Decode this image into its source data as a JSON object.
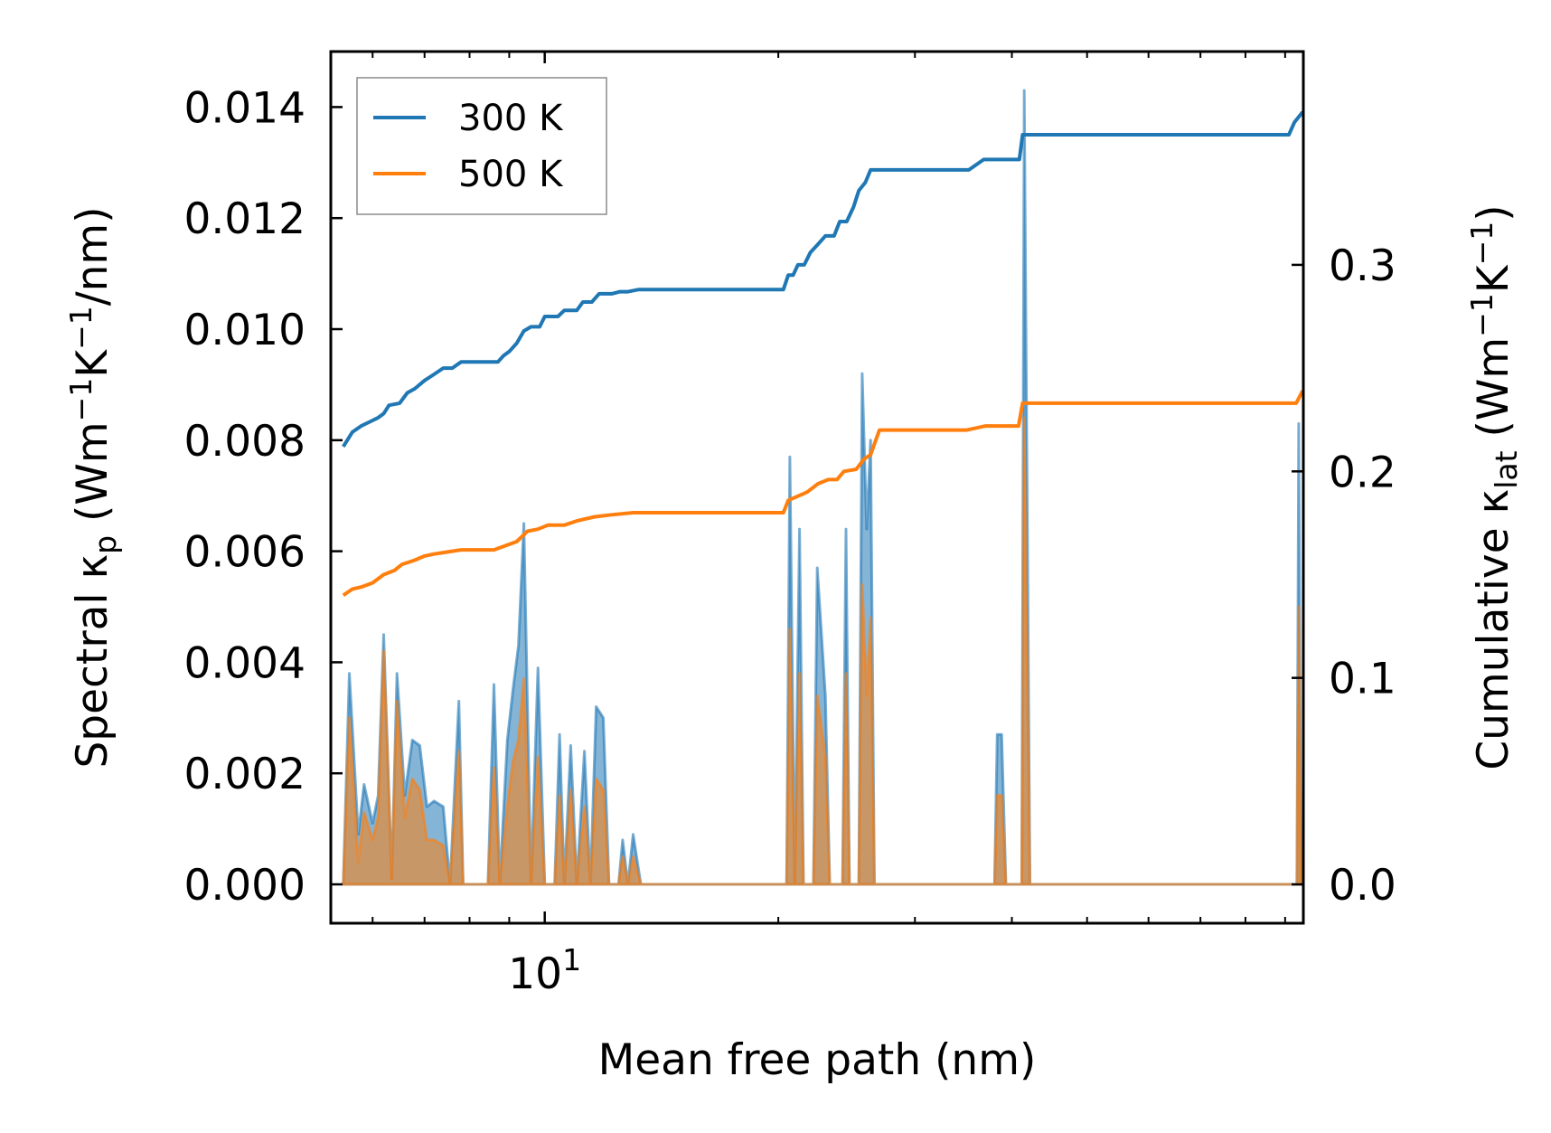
{
  "chart_data": {
    "type": "line",
    "xscale": "log",
    "xlim": [
      5.3,
      95
    ],
    "ylim_left": [
      -0.0007,
      0.015
    ],
    "ylim_right": [
      -0.0188,
      0.4033
    ],
    "xlabel": "Mean free path (nm)",
    "ylabel_left": {
      "main": "Spectral κ",
      "sub": "p",
      "unit_pre": " (Wm",
      "sup1": "−1",
      "unit_mid": "K",
      "sup2": "−1",
      "unit_post": "/nm)"
    },
    "ylabel_right": {
      "main": "Cumulative κ",
      "sub": "lat",
      "unit_pre": " (Wm",
      "sup1": "−1",
      "unit_mid": "K",
      "sup2": "−1",
      "unit_post": ")"
    },
    "x_major_ticks": [
      {
        "value": 10,
        "base": "10",
        "exp": "1"
      }
    ],
    "x_minor_ticks": [
      6,
      7,
      8,
      9,
      20,
      30,
      40,
      50,
      60,
      70,
      80,
      90
    ],
    "y_left_ticks": [
      {
        "value": 0.0,
        "label": "0.000"
      },
      {
        "value": 0.002,
        "label": "0.002"
      },
      {
        "value": 0.004,
        "label": "0.004"
      },
      {
        "value": 0.006,
        "label": "0.006"
      },
      {
        "value": 0.008,
        "label": "0.008"
      },
      {
        "value": 0.01,
        "label": "0.010"
      },
      {
        "value": 0.012,
        "label": "0.012"
      },
      {
        "value": 0.014,
        "label": "0.014"
      }
    ],
    "y_right_ticks": [
      {
        "value": 0.0,
        "label": "0.0"
      },
      {
        "value": 0.1,
        "label": "0.1"
      },
      {
        "value": 0.2,
        "label": "0.2"
      },
      {
        "value": 0.3,
        "label": "0.3"
      }
    ],
    "legend": {
      "position": "top-left",
      "entries": [
        {
          "label": "300 K",
          "color": "#1f77b4"
        },
        {
          "label": "500 K",
          "color": "#ff7f0e"
        }
      ]
    },
    "series": [
      {
        "name": "300 K",
        "color": "#1f77b4",
        "spectral": [
          [
            5.5,
            0
          ],
          [
            5.6,
            0.0038
          ],
          [
            5.75,
            0.0009
          ],
          [
            5.85,
            0.0018
          ],
          [
            6.0,
            0.0011
          ],
          [
            6.1,
            0.0016
          ],
          [
            6.2,
            0.0045
          ],
          [
            6.35,
            0.0001
          ],
          [
            6.45,
            0.0038
          ],
          [
            6.6,
            0.0016
          ],
          [
            6.75,
            0.0026
          ],
          [
            6.9,
            0.0025
          ],
          [
            7.05,
            0.0014
          ],
          [
            7.2,
            0.0015
          ],
          [
            7.4,
            0.0014
          ],
          [
            7.55,
            0
          ],
          [
            7.75,
            0.0033
          ],
          [
            7.85,
            0
          ],
          [
            8.45,
            0
          ],
          [
            8.6,
            0.0036
          ],
          [
            8.75,
            0
          ],
          [
            8.95,
            0.0026
          ],
          [
            9.1,
            0.0035
          ],
          [
            9.25,
            0.0043
          ],
          [
            9.4,
            0.0065
          ],
          [
            9.6,
            0
          ],
          [
            9.8,
            0.0039
          ],
          [
            10.0,
            0
          ],
          [
            10.3,
            0
          ],
          [
            10.45,
            0.0027
          ],
          [
            10.6,
            0
          ],
          [
            10.8,
            0.0025
          ],
          [
            11.0,
            0
          ],
          [
            11.25,
            0.0024
          ],
          [
            11.45,
            0
          ],
          [
            11.65,
            0.0032
          ],
          [
            11.9,
            0.003
          ],
          [
            12.1,
            0
          ],
          [
            12.45,
            0
          ],
          [
            12.6,
            0.0008
          ],
          [
            12.8,
            0
          ],
          [
            13.0,
            0.0009
          ],
          [
            13.3,
            0
          ],
          [
            20.5,
            0
          ],
          [
            20.7,
            0.0077
          ],
          [
            21.0,
            0
          ],
          [
            21.3,
            0.0064
          ],
          [
            21.55,
            0
          ],
          [
            22.2,
            0
          ],
          [
            22.45,
            0.0057
          ],
          [
            23.0,
            0.0034
          ],
          [
            23.3,
            0
          ],
          [
            24.2,
            0
          ],
          [
            24.45,
            0.0064
          ],
          [
            24.7,
            0
          ],
          [
            25.4,
            0
          ],
          [
            25.65,
            0.0092
          ],
          [
            26.0,
            0.0064
          ],
          [
            26.3,
            0.008
          ],
          [
            26.6,
            0
          ],
          [
            38.0,
            0
          ],
          [
            38.3,
            0.0027
          ],
          [
            38.8,
            0.0027
          ],
          [
            39.3,
            0
          ],
          [
            41.2,
            0
          ],
          [
            41.5,
            0.0143
          ],
          [
            42.2,
            0
          ],
          [
            93.2,
            0
          ],
          [
            93.7,
            0.0083
          ],
          [
            94.3,
            0
          ]
        ],
        "cumulative": [
          [
            5.5,
            0.212
          ],
          [
            5.65,
            0.219
          ],
          [
            5.8,
            0.222
          ],
          [
            5.95,
            0.224
          ],
          [
            6.1,
            0.226
          ],
          [
            6.2,
            0.228
          ],
          [
            6.3,
            0.232
          ],
          [
            6.5,
            0.233
          ],
          [
            6.65,
            0.238
          ],
          [
            6.8,
            0.24
          ],
          [
            7.0,
            0.244
          ],
          [
            7.2,
            0.247
          ],
          [
            7.4,
            0.25
          ],
          [
            7.6,
            0.25
          ],
          [
            7.8,
            0.253
          ],
          [
            8.3,
            0.253
          ],
          [
            8.7,
            0.253
          ],
          [
            8.85,
            0.256
          ],
          [
            9.0,
            0.258
          ],
          [
            9.2,
            0.262
          ],
          [
            9.4,
            0.268
          ],
          [
            9.6,
            0.27
          ],
          [
            9.85,
            0.27
          ],
          [
            10.0,
            0.275
          ],
          [
            10.4,
            0.275
          ],
          [
            10.6,
            0.278
          ],
          [
            11.0,
            0.278
          ],
          [
            11.2,
            0.282
          ],
          [
            11.5,
            0.282
          ],
          [
            11.75,
            0.286
          ],
          [
            12.2,
            0.286
          ],
          [
            12.5,
            0.287
          ],
          [
            12.8,
            0.287
          ],
          [
            13.2,
            0.288
          ],
          [
            20.3,
            0.288
          ],
          [
            20.6,
            0.295
          ],
          [
            20.9,
            0.295
          ],
          [
            21.2,
            0.3
          ],
          [
            21.6,
            0.3
          ],
          [
            22.0,
            0.306
          ],
          [
            22.5,
            0.31
          ],
          [
            23.0,
            0.314
          ],
          [
            23.6,
            0.314
          ],
          [
            24.0,
            0.321
          ],
          [
            24.5,
            0.321
          ],
          [
            25.0,
            0.328
          ],
          [
            25.4,
            0.336
          ],
          [
            25.9,
            0.34
          ],
          [
            26.3,
            0.346
          ],
          [
            33.0,
            0.346
          ],
          [
            35.2,
            0.346
          ],
          [
            36.8,
            0.351
          ],
          [
            40.9,
            0.351
          ],
          [
            41.3,
            0.363
          ],
          [
            88.0,
            0.363
          ],
          [
            91.0,
            0.363
          ],
          [
            92.5,
            0.369
          ],
          [
            94.8,
            0.374
          ]
        ]
      },
      {
        "name": "500 K",
        "color": "#ff7f0e",
        "spectral": [
          [
            5.5,
            0
          ],
          [
            5.6,
            0.003
          ],
          [
            5.75,
            0.0004
          ],
          [
            5.85,
            0.0013
          ],
          [
            6.0,
            0.0008
          ],
          [
            6.1,
            0.0012
          ],
          [
            6.2,
            0.0042
          ],
          [
            6.35,
            0.0001
          ],
          [
            6.45,
            0.0033
          ],
          [
            6.6,
            0.0012
          ],
          [
            6.75,
            0.0019
          ],
          [
            6.9,
            0.0017
          ],
          [
            7.05,
            0.0008
          ],
          [
            7.2,
            0.0008
          ],
          [
            7.4,
            0.0007
          ],
          [
            7.55,
            0
          ],
          [
            7.75,
            0.0024
          ],
          [
            7.85,
            0
          ],
          [
            8.45,
            0
          ],
          [
            8.6,
            0.0021
          ],
          [
            8.75,
            0
          ],
          [
            8.95,
            0.0014
          ],
          [
            9.1,
            0.0022
          ],
          [
            9.25,
            0.0026
          ],
          [
            9.4,
            0.0037
          ],
          [
            9.6,
            0
          ],
          [
            9.8,
            0.0023
          ],
          [
            10.0,
            0
          ],
          [
            10.3,
            0
          ],
          [
            10.45,
            0.0016
          ],
          [
            10.6,
            0
          ],
          [
            10.8,
            0.0017
          ],
          [
            11.0,
            0
          ],
          [
            11.25,
            0.0014
          ],
          [
            11.45,
            0
          ],
          [
            11.65,
            0.0019
          ],
          [
            11.9,
            0.0017
          ],
          [
            12.1,
            0
          ],
          [
            12.45,
            0
          ],
          [
            12.6,
            0.0005
          ],
          [
            12.8,
            0
          ],
          [
            13.0,
            0.0005
          ],
          [
            13.3,
            0
          ],
          [
            20.5,
            0
          ],
          [
            20.7,
            0.0046
          ],
          [
            21.0,
            0
          ],
          [
            21.3,
            0.0038
          ],
          [
            21.55,
            0
          ],
          [
            22.2,
            0
          ],
          [
            22.45,
            0.0034
          ],
          [
            23.0,
            0.0023
          ],
          [
            23.3,
            0
          ],
          [
            24.2,
            0
          ],
          [
            24.45,
            0.0038
          ],
          [
            24.7,
            0
          ],
          [
            25.4,
            0
          ],
          [
            25.65,
            0.0054
          ],
          [
            26.0,
            0.0034
          ],
          [
            26.3,
            0.0048
          ],
          [
            26.6,
            0
          ],
          [
            38.0,
            0
          ],
          [
            38.3,
            0.0016
          ],
          [
            38.8,
            0.0016
          ],
          [
            39.3,
            0
          ],
          [
            41.2,
            0
          ],
          [
            41.5,
            0.0084
          ],
          [
            42.2,
            0
          ],
          [
            93.2,
            0
          ],
          [
            93.7,
            0.005
          ],
          [
            94.3,
            0
          ]
        ],
        "cumulative": [
          [
            5.5,
            0.14
          ],
          [
            5.65,
            0.143
          ],
          [
            5.8,
            0.144
          ],
          [
            6.0,
            0.146
          ],
          [
            6.2,
            0.15
          ],
          [
            6.4,
            0.152
          ],
          [
            6.55,
            0.155
          ],
          [
            6.8,
            0.157
          ],
          [
            7.0,
            0.159
          ],
          [
            7.2,
            0.16
          ],
          [
            7.5,
            0.161
          ],
          [
            7.8,
            0.162
          ],
          [
            8.3,
            0.162
          ],
          [
            8.6,
            0.162
          ],
          [
            8.9,
            0.164
          ],
          [
            9.2,
            0.166
          ],
          [
            9.5,
            0.171
          ],
          [
            9.8,
            0.172
          ],
          [
            10.1,
            0.174
          ],
          [
            10.6,
            0.174
          ],
          [
            11.0,
            0.176
          ],
          [
            11.6,
            0.178
          ],
          [
            12.2,
            0.179
          ],
          [
            13.0,
            0.18
          ],
          [
            20.3,
            0.18
          ],
          [
            20.6,
            0.186
          ],
          [
            21.2,
            0.188
          ],
          [
            21.8,
            0.19
          ],
          [
            22.5,
            0.194
          ],
          [
            23.2,
            0.196
          ],
          [
            23.8,
            0.196
          ],
          [
            24.3,
            0.2
          ],
          [
            25.2,
            0.201
          ],
          [
            25.8,
            0.206
          ],
          [
            26.3,
            0.208
          ],
          [
            27.0,
            0.22
          ],
          [
            35.0,
            0.22
          ],
          [
            37.0,
            0.222
          ],
          [
            40.8,
            0.222
          ],
          [
            41.3,
            0.233
          ],
          [
            91.0,
            0.233
          ],
          [
            93.0,
            0.233
          ],
          [
            94.8,
            0.239
          ]
        ]
      }
    ]
  }
}
